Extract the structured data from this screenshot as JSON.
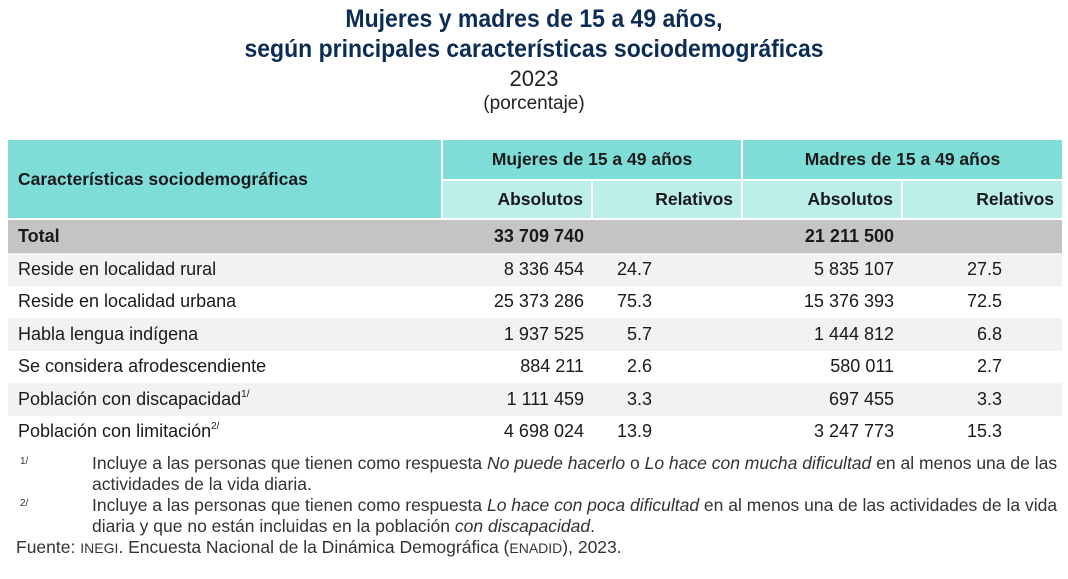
{
  "title": {
    "line1": "Mujeres y madres de 15 a 49 años,",
    "line2": "según principales características sociodemográficas",
    "year": "2023",
    "unit": "(porcentaje)"
  },
  "table": {
    "header": {
      "row_label": "Características sociodemográficas",
      "groups": [
        "Mujeres de 15 a 49 años",
        "Madres de 15 a 49 años"
      ],
      "sub": [
        "Absolutos",
        "Relativos",
        "Absolutos",
        "Relativos"
      ]
    },
    "total": {
      "label": "Total",
      "mujeres_abs": "33 709 740",
      "madres_abs": "21 211 500"
    },
    "rows": [
      {
        "label": "Reside en localidad rural",
        "sup": "",
        "m_abs": "8 336 454",
        "m_rel": "24.7",
        "d_abs": "5 835 107",
        "d_rel": "27.5"
      },
      {
        "label": "Reside en localidad urbana",
        "sup": "",
        "m_abs": "25 373 286",
        "m_rel": "75.3",
        "d_abs": "15 376 393",
        "d_rel": "72.5"
      },
      {
        "label": "Habla lengua indígena",
        "sup": "",
        "m_abs": "1 937 525",
        "m_rel": "5.7",
        "d_abs": "1 444 812",
        "d_rel": "6.8"
      },
      {
        "label": "Se considera afrodescendiente",
        "sup": "",
        "m_abs": "884 211",
        "m_rel": "2.6",
        "d_abs": "580 011",
        "d_rel": "2.7"
      },
      {
        "label": "Población con discapacidad",
        "sup": "1/",
        "m_abs": "1 111 459",
        "m_rel": "3.3",
        "d_abs": "697 455",
        "d_rel": "3.3"
      },
      {
        "label": "Población con limitación",
        "sup": "2/",
        "m_abs": "4 698 024",
        "m_rel": "13.9",
        "d_abs": "3 247 773",
        "d_rel": "15.3"
      }
    ]
  },
  "notes": [
    {
      "mark": "1/",
      "parts": [
        "Incluye a las personas que tienen como respuesta ",
        "No puede hacerlo",
        " o ",
        "Lo hace con mucha dificultad",
        " en al menos una de las actividades de la vida diaria."
      ]
    },
    {
      "mark": "2/",
      "parts": [
        "Incluye a las personas que tienen como respuesta ",
        "Lo hace con poca dificultad",
        " en al menos una de las actividades de la vida diaria y que no están incluidas en la población ",
        "con discapacidad",
        "."
      ]
    }
  ],
  "source": {
    "label": "Fuente:",
    "org": "INEGI",
    "text1": ". Encuesta Nacional de la Dinámica Demográfica (",
    "acronym": "ENADID",
    "text2": "), 2023."
  },
  "colors": {
    "title": "#0b2d55",
    "header": "#7fddd8",
    "subheader": "#bceeea",
    "total_row": "#c4c4c4",
    "stripe": "#f2f2f2"
  }
}
